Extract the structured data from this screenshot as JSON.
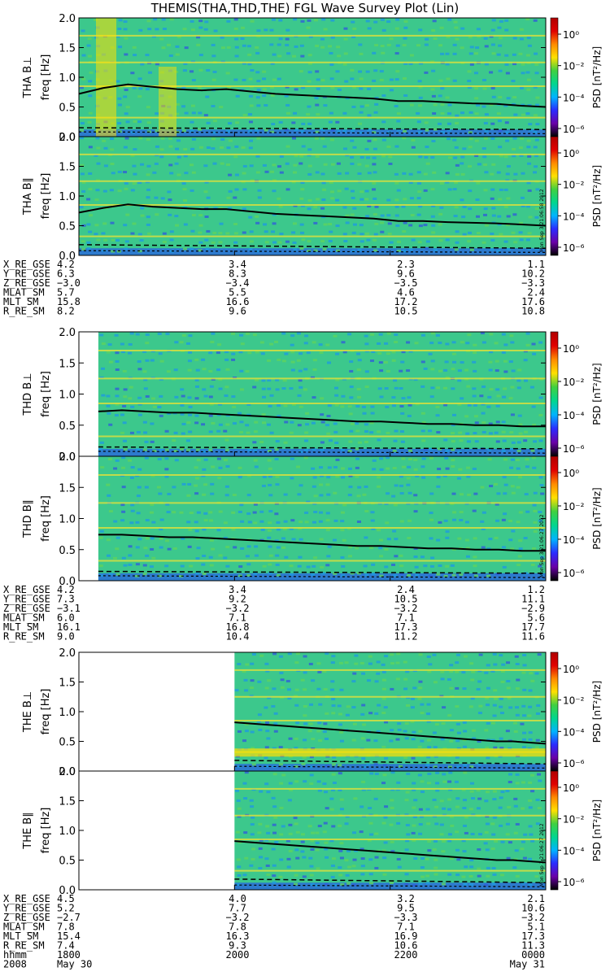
{
  "title": "THEMIS(THA,THD,THE) FGL Wave Survey Plot (Lin)",
  "colors": {
    "background": "#ffffff",
    "colorbar": [
      "#000000",
      "#6a00a8",
      "#2b2bff",
      "#00b4ff",
      "#00d68f",
      "#40d040",
      "#ffe000",
      "#ff8a00",
      "#e00000",
      "#b00000"
    ]
  },
  "chart_data": [
    {
      "type": "heatmap",
      "panel_label": "THA B⊥",
      "ylabel": "freq [Hz]",
      "yticks": [
        "0.0",
        "0.5",
        "1.0",
        "1.5",
        "2.0"
      ],
      "ylim": [
        0,
        2.0
      ],
      "x": [
        "1800",
        "2000",
        "2200",
        "0000"
      ],
      "colorbar_label": "PSD [nT²/Hz]",
      "colorbar_ticks": [
        "10⁰",
        "10⁻²",
        "10⁻⁴",
        "10⁻⁶"
      ],
      "data_start": "1800",
      "line_fce": [
        0.72,
        0.82,
        0.88,
        0.84,
        0.8,
        0.78,
        0.8,
        0.76,
        0.72,
        0.7,
        0.68,
        0.66,
        0.64,
        0.6,
        0.6,
        0.58,
        0.56,
        0.55,
        0.52,
        0.5
      ],
      "dashed_low": 0.15,
      "dashed_high": 0.08
    },
    {
      "type": "heatmap",
      "panel_label": "THA B∥",
      "ylabel": "freq [Hz]",
      "yticks": [
        "0.0",
        "0.5",
        "1.0",
        "1.5",
        "2.0"
      ],
      "ylim": [
        0,
        2.0
      ],
      "colorbar_label": "PSD [nT²/Hz]",
      "colorbar_ticks": [
        "10⁰",
        "10⁻²",
        "10⁻⁴",
        "10⁻⁶"
      ],
      "data_start": "1800",
      "line_fce": [
        0.72,
        0.8,
        0.86,
        0.82,
        0.8,
        0.78,
        0.78,
        0.74,
        0.7,
        0.68,
        0.66,
        0.64,
        0.62,
        0.58,
        0.58,
        0.56,
        0.55,
        0.54,
        0.52,
        0.5
      ],
      "dashed_low": 0.18,
      "dashed_high": 0.08,
      "stamp": "Mon Sep 3 21:06:58 2012"
    },
    {
      "type": "heatmap",
      "panel_label": "THD B⊥",
      "ylabel": "freq [Hz]",
      "yticks": [
        "0.0",
        "0.5",
        "1.0",
        "1.5",
        "2.0"
      ],
      "ylim": [
        0,
        2.0
      ],
      "colorbar_label": "PSD [nT²/Hz]",
      "colorbar_ticks": [
        "10⁰",
        "10⁻²",
        "10⁻⁴",
        "10⁻⁶"
      ],
      "data_start": "1815",
      "line_fce": [
        0.72,
        0.74,
        0.72,
        0.7,
        0.7,
        0.68,
        0.66,
        0.64,
        0.62,
        0.6,
        0.58,
        0.56,
        0.56,
        0.54,
        0.52,
        0.52,
        0.5,
        0.5,
        0.48,
        0.48
      ],
      "dashed_low": 0.15,
      "dashed_high": 0.08
    },
    {
      "type": "heatmap",
      "panel_label": "THD B∥",
      "ylabel": "freq [Hz]",
      "yticks": [
        "0.0",
        "0.5",
        "1.0",
        "1.5",
        "2.0"
      ],
      "ylim": [
        0,
        2.0
      ],
      "colorbar_label": "PSD [nT²/Hz]",
      "colorbar_ticks": [
        "10⁰",
        "10⁻²",
        "10⁻⁴",
        "10⁻⁶"
      ],
      "data_start": "1815",
      "line_fce": [
        0.74,
        0.74,
        0.72,
        0.7,
        0.7,
        0.68,
        0.66,
        0.64,
        0.62,
        0.6,
        0.58,
        0.56,
        0.56,
        0.54,
        0.52,
        0.52,
        0.5,
        0.5,
        0.48,
        0.48
      ],
      "dashed_low": 0.15,
      "dashed_high": 0.08,
      "stamp": "Mon Sep 3 21:06:27 2012"
    },
    {
      "type": "heatmap",
      "panel_label": "THE B⊥",
      "ylabel": "freq [Hz]",
      "yticks": [
        "0.0",
        "0.5",
        "1.0",
        "1.5",
        "2.0"
      ],
      "ylim": [
        0,
        2.0
      ],
      "colorbar_label": "PSD [nT²/Hz]",
      "colorbar_ticks": [
        "10⁰",
        "10⁻²",
        "10⁻⁴",
        "10⁻⁶"
      ],
      "data_start": "2000",
      "line_fce": [
        0.82,
        0.8,
        0.78,
        0.76,
        0.74,
        0.72,
        0.7,
        0.68,
        0.66,
        0.64,
        0.62,
        0.6,
        0.58,
        0.56,
        0.54,
        0.52,
        0.5,
        0.5,
        0.48,
        0.46
      ],
      "dashed_low": 0.18,
      "dashed_high": 0.08
    },
    {
      "type": "heatmap",
      "panel_label": "THE B∥",
      "ylabel": "freq [Hz]",
      "yticks": [
        "0.0",
        "0.5",
        "1.0",
        "1.5",
        "2.0"
      ],
      "ylim": [
        0,
        2.0
      ],
      "colorbar_label": "PSD [nT²/Hz]",
      "colorbar_ticks": [
        "10⁰",
        "10⁻²",
        "10⁻⁴",
        "10⁻⁶"
      ],
      "data_start": "2000",
      "line_fce": [
        0.82,
        0.8,
        0.78,
        0.76,
        0.74,
        0.72,
        0.7,
        0.68,
        0.66,
        0.64,
        0.62,
        0.6,
        0.58,
        0.56,
        0.54,
        0.52,
        0.5,
        0.5,
        0.48,
        0.46
      ],
      "dashed_low": 0.18,
      "dashed_high": 0.08,
      "stamp": "Mon Sep 3 21:06:27 2012"
    }
  ],
  "ephemeris": [
    {
      "labels": [
        "X_RE_GSE",
        "Y_RE_GSE",
        "Z_RE_GSE",
        "MLAT_SM",
        "MLT_SM",
        "R_RE_SM"
      ],
      "columns": [
        [
          "4.2",
          "6.3",
          "−3.0",
          "5.7",
          "15.8",
          "8.2"
        ],
        [
          "3.4",
          "8.3",
          "−3.4",
          "5.5",
          "16.6",
          "9.6"
        ],
        [
          "2.3",
          "9.6",
          "−3.5",
          "4.6",
          "17.2",
          "10.5"
        ],
        [
          "1.1",
          "10.2",
          "−3.3",
          "2.4",
          "17.6",
          "10.8"
        ]
      ]
    },
    {
      "labels": [
        "X_RE_GSE",
        "Y_RE_GSE",
        "Z_RE_GSE",
        "MLAT_SM",
        "MLT_SM",
        "R_RE_SM"
      ],
      "columns": [
        [
          "4.2",
          "7.3",
          "−3.1",
          "6.0",
          "16.1",
          "9.0"
        ],
        [
          "3.4",
          "9.2",
          "−3.2",
          "7.1",
          "16.8",
          "10.4"
        ],
        [
          "2.4",
          "10.5",
          "−3.2",
          "7.1",
          "17.3",
          "11.2"
        ],
        [
          "1.2",
          "11.1",
          "−2.9",
          "5.6",
          "17.7",
          "11.6"
        ]
      ]
    },
    {
      "labels": [
        "X_RE_GSE",
        "Y_RE_GSE",
        "Z_RE_GSE",
        "MLAT_SM",
        "MLT_SM",
        "R_RE_SM",
        "hhmm",
        "2008"
      ],
      "columns": [
        [
          "4.5",
          "5.2",
          "−2.7",
          "7.8",
          "15.4",
          "7.4",
          "1800",
          "May 30"
        ],
        [
          "4.0",
          "7.7",
          "−3.2",
          "7.8",
          "16.3",
          "9.3",
          "2000",
          ""
        ],
        [
          "3.2",
          "9.5",
          "−3.3",
          "7.1",
          "16.9",
          "10.6",
          "2200",
          ""
        ],
        [
          "2.1",
          "10.6",
          "−3.2",
          "5.1",
          "17.3",
          "11.3",
          "0000",
          "May 31"
        ]
      ]
    }
  ]
}
